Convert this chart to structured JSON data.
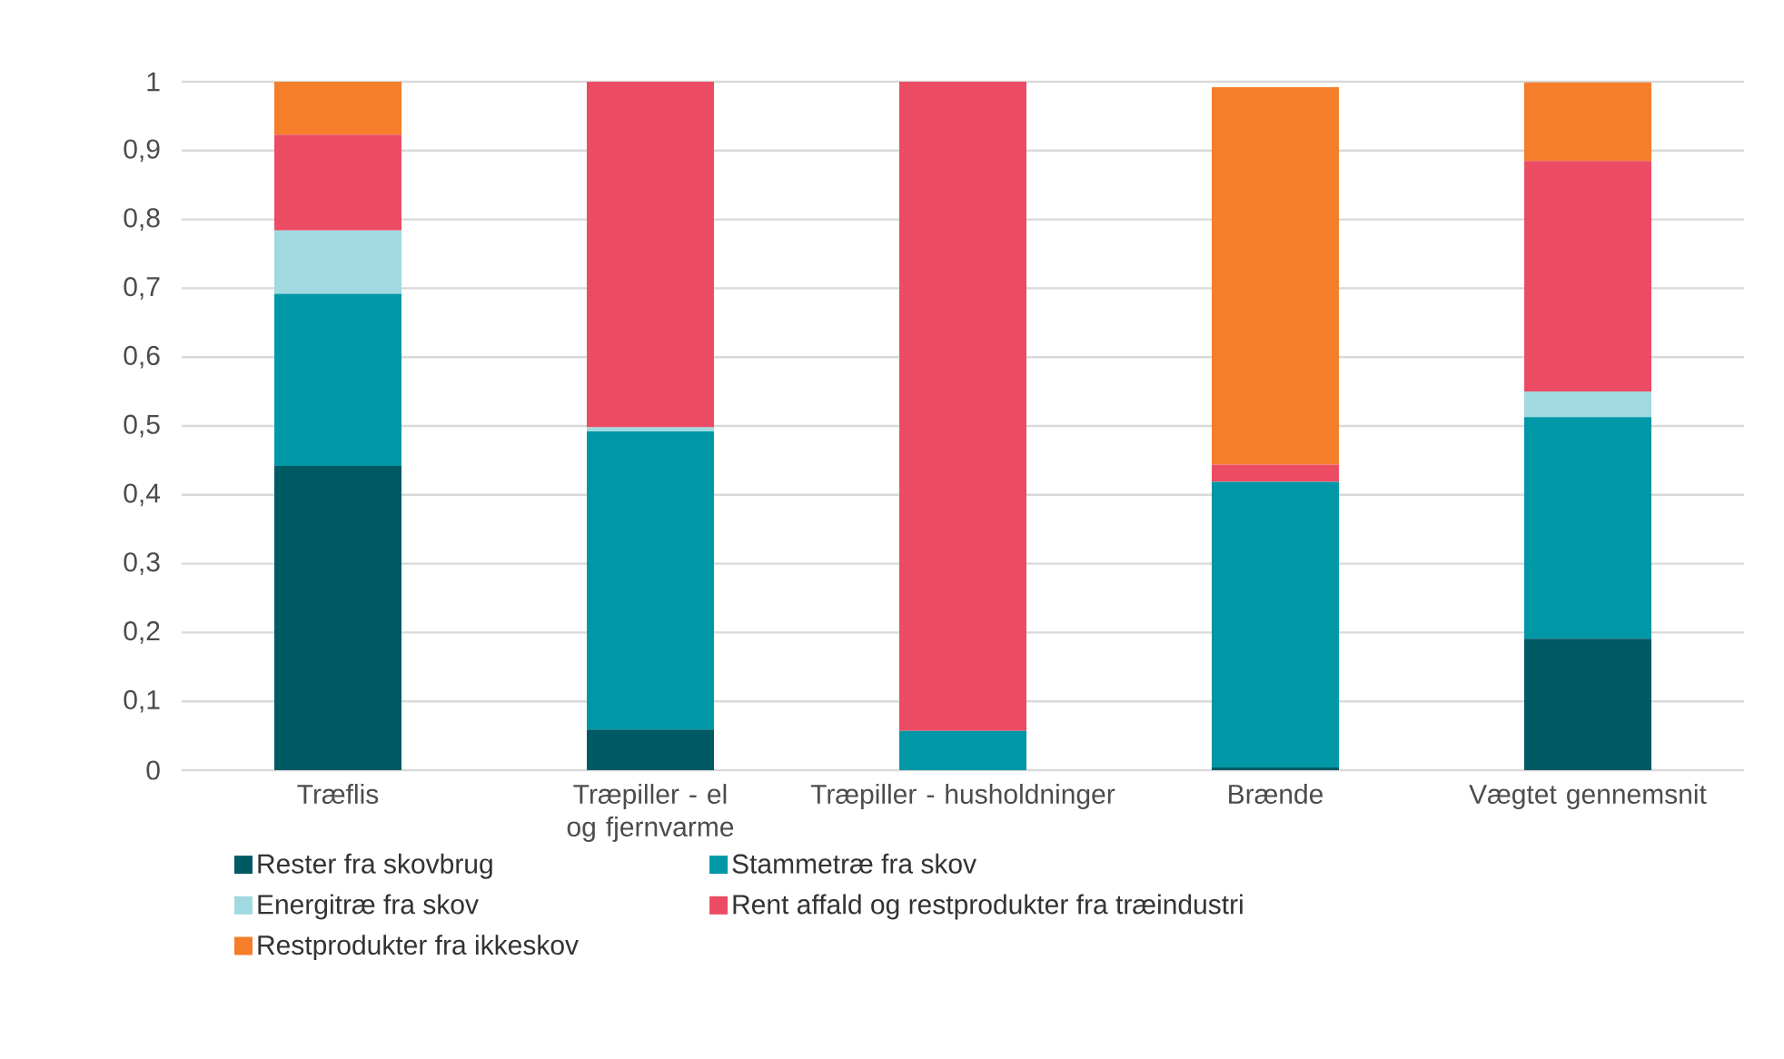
{
  "chart_data": {
    "type": "bar",
    "stacked": true,
    "categories": [
      "Træflis",
      "Træpiller - el og fjernvarme",
      "Træpiller - husholdninger",
      "Brænde",
      "Vægtet gennemsnit"
    ],
    "series": [
      {
        "name": "Rester fra skovbrug",
        "color": "#005a64",
        "values": [
          0.442,
          0.059,
          0,
          0.004,
          0.191
        ]
      },
      {
        "name": "Stammetræ fra skov",
        "color": "#0097a7",
        "values": [
          0.25,
          0.433,
          0.057,
          0.415,
          0.322
        ]
      },
      {
        "name": "Energitræ fra skov",
        "color": "#a0d9df",
        "values": [
          0.092,
          0.006,
          0,
          0,
          0.037
        ]
      },
      {
        "name": "Rent affald og restprodukter fra træindustri",
        "color": "#ec4c63",
        "values": [
          0.139,
          0.502,
          0.943,
          0.025,
          0.335
        ]
      },
      {
        "name": "Restprodukter fra ikkeskov",
        "color": "#f47e2a",
        "values": [
          0.077,
          0,
          0,
          0.548,
          0.114
        ]
      }
    ],
    "ylim": [
      0,
      1
    ],
    "yticks": [
      0,
      {
        "value": 0.1,
        "label": "0,1"
      },
      {
        "value": 0.2,
        "label": "0,2"
      },
      {
        "value": 0.3,
        "label": "0,3"
      },
      {
        "value": 0.4,
        "label": "0,4"
      },
      {
        "value": 0.5,
        "label": "0,5"
      },
      {
        "value": 0.6,
        "label": "0,6"
      },
      {
        "value": 0.7,
        "label": "0,7"
      },
      {
        "value": 0.8,
        "label": "0,8"
      },
      {
        "value": 0.9,
        "label": "0,9"
      },
      1
    ],
    "grid": "y",
    "legend": "bottom"
  }
}
